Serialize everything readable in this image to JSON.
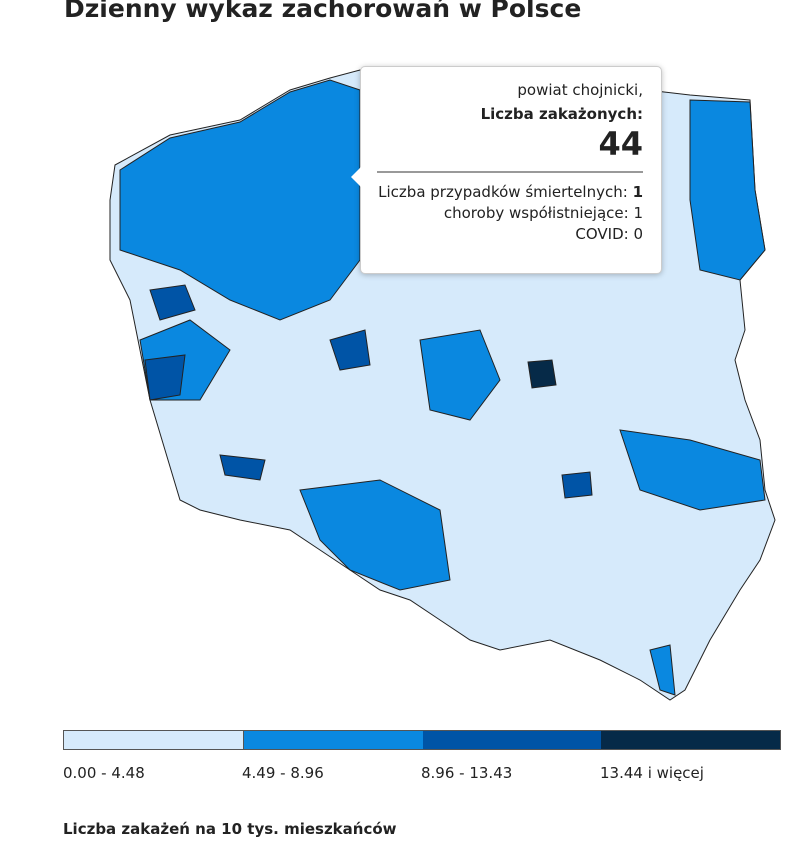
{
  "title": "Dzienny wykaz zachorowań w Polsce",
  "colors": {
    "c1": "#d6eafb",
    "c2": "#0a88e0",
    "c3": "#0054a6",
    "c4": "#062a48"
  },
  "tooltip": {
    "region": "powiat chojnicki,",
    "label": "Liczba zakażonych:",
    "value": "44",
    "deaths_label": "Liczba przypadków śmiertelnych:",
    "deaths_value": "1",
    "comorb": "choroby współistniejące: 1",
    "covid": "COVID: 0"
  },
  "legend": {
    "bins": [
      "0.00 - 4.48",
      "4.49 - 8.96",
      "8.96 - 13.43",
      "13.44 i więcej"
    ],
    "title": "Liczba zakażeń na 10 tys. mieszkańców"
  }
}
